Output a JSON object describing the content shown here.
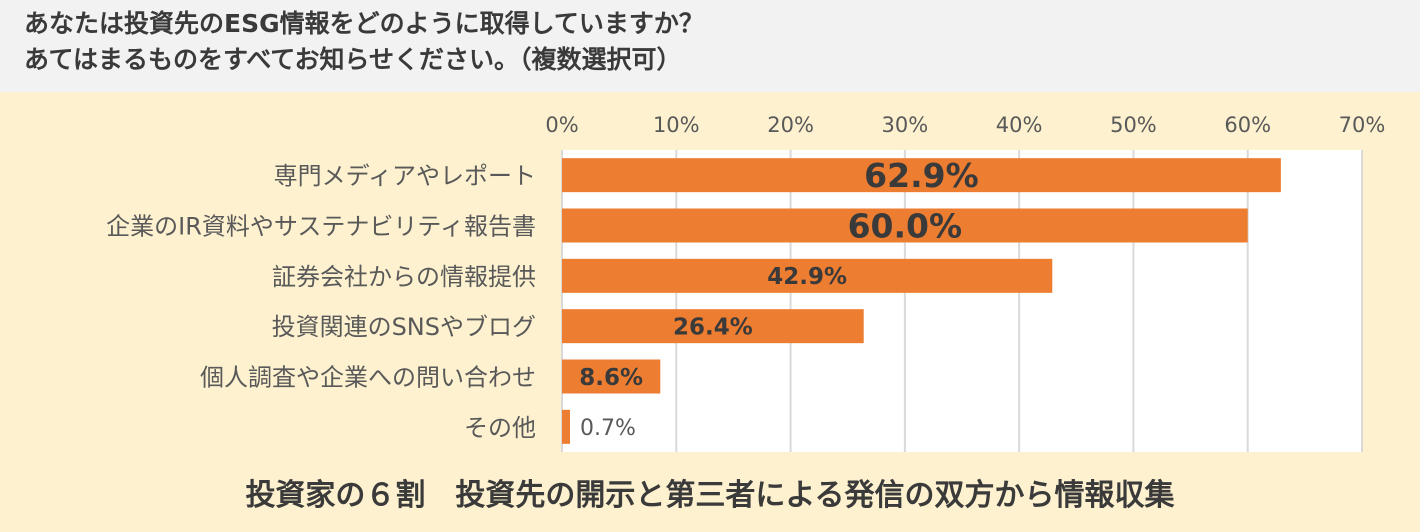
{
  "question": {
    "line1": "あなたは投資先のESG情報をどのように取得していますか？",
    "line2": "あてはまるものをすべてお知らせください。（複数選択可）"
  },
  "chart_data": {
    "type": "bar",
    "orientation": "horizontal",
    "categories": [
      "専門メディアやレポート",
      "企業のIR資料やサステナビリティ報告書",
      "証券会社からの情報提供",
      "投資関連のSNSやブログ",
      "個人調査や企業への問い合わせ",
      "その他"
    ],
    "values": [
      62.9,
      60.0,
      42.9,
      26.4,
      8.6,
      0.7
    ],
    "value_labels": [
      "62.9%",
      "60.0%",
      "42.9%",
      "26.4%",
      "8.6%",
      "0.7%"
    ],
    "xlim": [
      0,
      70
    ],
    "xticks": [
      0,
      10,
      20,
      30,
      40,
      50,
      60,
      70
    ],
    "xtick_labels": [
      "0%",
      "10%",
      "20%",
      "30%",
      "40%",
      "50%",
      "60%",
      "70%"
    ],
    "bar_color": "#ed7d31",
    "grid": true
  },
  "footer": {
    "summary": "投資家の６割　投資先の開示と第三者による発信の双方から情報収集"
  }
}
